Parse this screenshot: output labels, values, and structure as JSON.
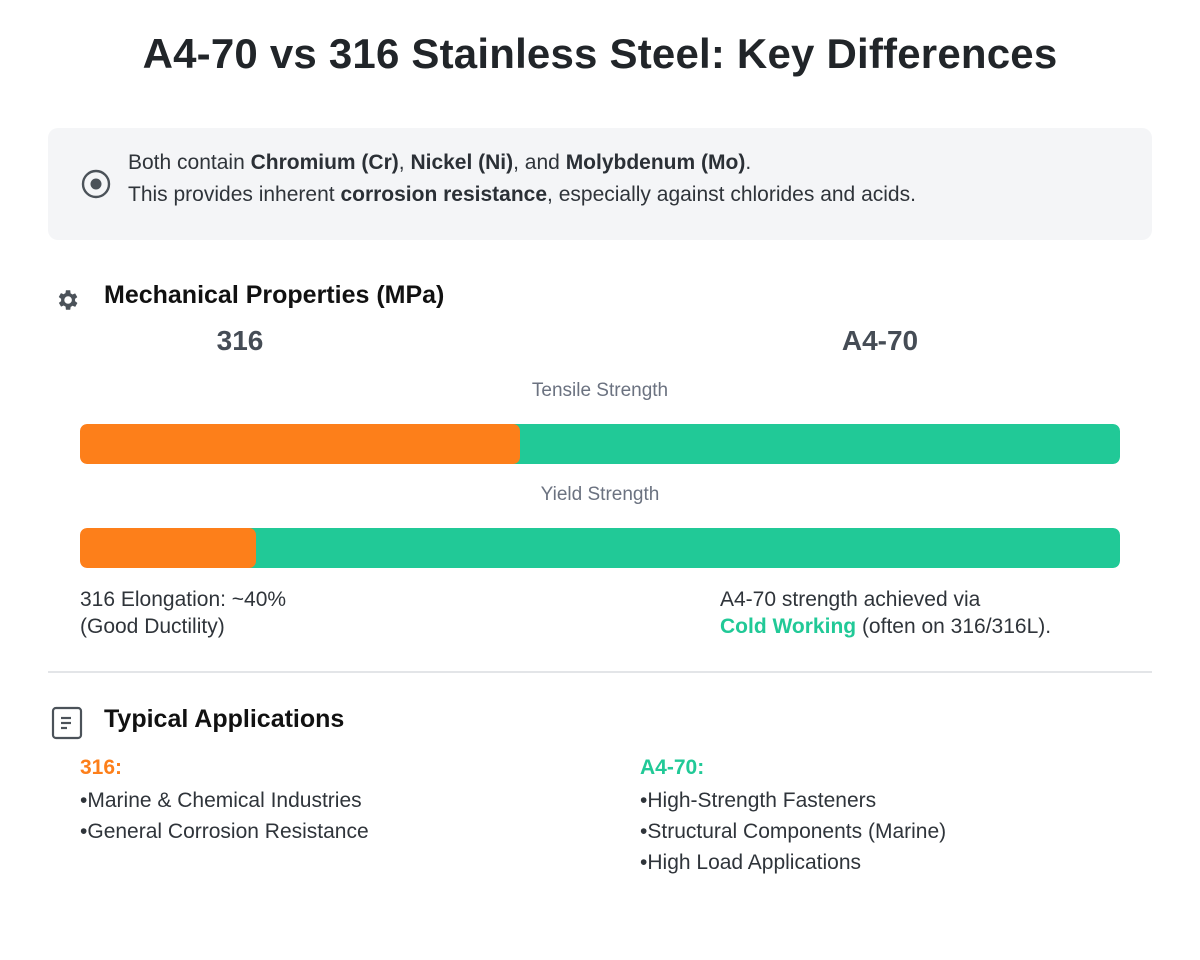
{
  "title": "A4-70 vs 316 Stainless Steel: Key Differences",
  "note": {
    "icon": "target-icon",
    "line1_prefix": "Both contain ",
    "chromium": "Chromium (Cr)",
    "sep1": ", ",
    "nickel": "Nickel (Ni)",
    "sep2": ", and ",
    "molybdenum": "Molybdenum (Mo)",
    "line1_end": ".",
    "line2_prefix": "This provides inherent ",
    "corrosion": "corrosion resistance",
    "line2_suffix": ", especially against chlorides and acids."
  },
  "mechanical": {
    "icon": "gear-icon",
    "title": "Mechanical Properties (MPa)",
    "col_316": "316",
    "col_a4": "A4-70",
    "bars": [
      {
        "label": "Tensile Strength",
        "fraction_316": 0.423
      },
      {
        "label": "Yield Strength",
        "fraction_316": 0.169
      }
    ],
    "note_316_line1": "316 Elongation: ~40%",
    "note_316_line2": "(Good Ductility)",
    "note_a4_line1": "A4-70 strength achieved via",
    "note_a4_cold": "Cold Working",
    "note_a4_rest": " (often on 316/316L)."
  },
  "applications": {
    "icon": "document-icon",
    "title": "Typical Applications",
    "head_316": "316:",
    "items_316": [
      "Marine & Chemical Industries",
      "General Corrosion Resistance"
    ],
    "head_a4": "A4-70:",
    "items_a4": [
      "High-Strength Fasteners",
      "Structural Components (Marine)",
      "High Load Applications"
    ]
  },
  "colors": {
    "c316": "#fd7f1a",
    "ca4": "#21c997"
  }
}
